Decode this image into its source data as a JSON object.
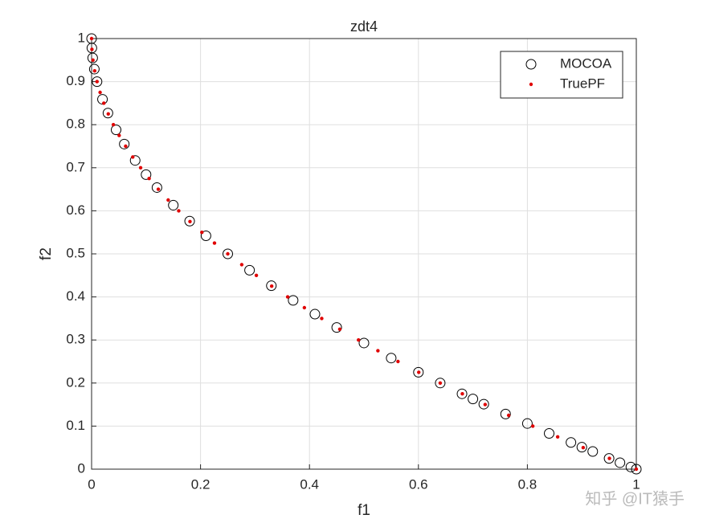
{
  "chart_data": {
    "type": "scatter",
    "title": "zdt4",
    "xlabel": "f1",
    "ylabel": "f2",
    "xlim": [
      0,
      1
    ],
    "ylim": [
      0,
      1
    ],
    "xticks": [
      0,
      0.2,
      0.4,
      0.6,
      0.8,
      1
    ],
    "yticks": [
      0,
      0.1,
      0.2,
      0.3,
      0.4,
      0.5,
      0.6,
      0.7,
      0.8,
      0.9,
      1
    ],
    "grid": true,
    "legend": "upper right",
    "series": [
      {
        "name": "MOCOA",
        "color": "#000000",
        "marker": "circle",
        "x": [
          0,
          0.0005,
          0.002,
          0.005,
          0.01,
          0.02,
          0.03,
          0.045,
          0.06,
          0.08,
          0.1,
          0.12,
          0.15,
          0.18,
          0.21,
          0.25,
          0.29,
          0.33,
          0.37,
          0.41,
          0.45,
          0.5,
          0.55,
          0.6,
          0.64,
          0.68,
          0.7,
          0.72,
          0.76,
          0.8,
          0.84,
          0.88,
          0.9,
          0.92,
          0.95,
          0.97,
          0.99,
          1
        ],
        "values": [
          1,
          0.978,
          0.955,
          0.929,
          0.9,
          0.859,
          0.827,
          0.788,
          0.755,
          0.717,
          0.684,
          0.654,
          0.613,
          0.576,
          0.542,
          0.5,
          0.462,
          0.426,
          0.392,
          0.36,
          0.329,
          0.293,
          0.258,
          0.225,
          0.2,
          0.175,
          0.163,
          0.151,
          0.128,
          0.106,
          0.083,
          0.062,
          0.051,
          0.041,
          0.025,
          0.015,
          0.005,
          0
        ]
      },
      {
        "name": "TruePF",
        "color": "#e00000",
        "marker": "dot",
        "x": [
          0,
          0.000625,
          0.0025,
          0.005625,
          0.01,
          0.015625,
          0.0225,
          0.030625,
          0.04,
          0.050625,
          0.0625,
          0.075625,
          0.09,
          0.105625,
          0.1225,
          0.140625,
          0.16,
          0.180625,
          0.2025,
          0.225625,
          0.25,
          0.275625,
          0.3025,
          0.330625,
          0.36,
          0.390625,
          0.4225,
          0.455625,
          0.49,
          0.525625,
          0.5625,
          0.600625,
          0.64,
          0.680625,
          0.7225,
          0.765625,
          0.81,
          0.855625,
          0.9025,
          0.950625,
          1
        ],
        "values": [
          1,
          0.975,
          0.95,
          0.925,
          0.9,
          0.875,
          0.85,
          0.825,
          0.8,
          0.775,
          0.75,
          0.725,
          0.7,
          0.675,
          0.65,
          0.625,
          0.6,
          0.575,
          0.55,
          0.525,
          0.5,
          0.475,
          0.45,
          0.425,
          0.4,
          0.375,
          0.35,
          0.325,
          0.3,
          0.275,
          0.25,
          0.225,
          0.2,
          0.175,
          0.15,
          0.125,
          0.1,
          0.075,
          0.05,
          0.025,
          0
        ]
      }
    ]
  },
  "watermark": "知乎 @IT猿手"
}
